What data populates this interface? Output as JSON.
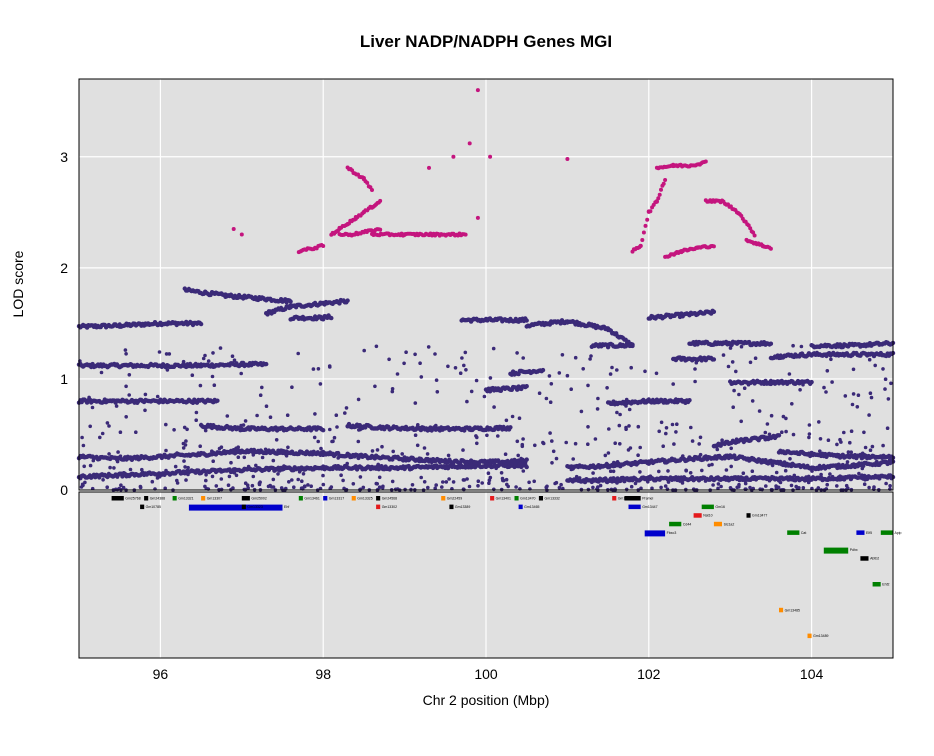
{
  "chart_data": {
    "type": "scatter",
    "title": "Liver NADP/NADPH Genes MGI",
    "xlabel": "Chr 2 position (Mbp)",
    "ylabel": "LOD score",
    "xlim": [
      95.0,
      105.0
    ],
    "ylim": [
      0,
      3.7
    ],
    "xticks": [
      96,
      98,
      100,
      102,
      104
    ],
    "yticks": [
      0,
      1,
      2,
      3
    ],
    "grid": true,
    "colors": {
      "panel_bg": "#e0e0e0",
      "grid": "#ffffff",
      "main_series": "#3b2a78",
      "significant_series": "#c4157e",
      "gene_colors": [
        "#000000",
        "#0000cc",
        "#008000",
        "#e41a1c",
        "#ff8c00"
      ]
    },
    "series": [
      {
        "role": "background-profiles",
        "segments": [
          {
            "x": [
              95.0,
              95.5,
              96.0,
              96.5
            ],
            "y": [
              1.47,
              1.48,
              1.5,
              1.5
            ]
          },
          {
            "x": [
              95.0,
              96.5,
              97.0,
              97.3
            ],
            "y": [
              1.12,
              1.12,
              1.13,
              1.13
            ]
          },
          {
            "x": [
              97.3,
              97.6,
              98.0,
              98.3
            ],
            "y": [
              1.59,
              1.65,
              1.68,
              1.7
            ]
          },
          {
            "x": [
              96.3,
              96.8,
              97.3,
              97.6
            ],
            "y": [
              1.8,
              1.75,
              1.72,
              1.7
            ]
          },
          {
            "x": [
              97.6,
              98.0,
              98.1
            ],
            "y": [
              1.55,
              1.55,
              1.56
            ]
          },
          {
            "x": [
              99.7,
              100.0,
              100.5
            ],
            "y": [
              1.53,
              1.53,
              1.53
            ]
          },
          {
            "x": [
              100.5,
              101.0,
              101.5,
              101.8
            ],
            "y": [
              1.48,
              1.52,
              1.45,
              1.3
            ]
          },
          {
            "x": [
              101.3,
              101.8
            ],
            "y": [
              1.3,
              1.3
            ]
          },
          {
            "x": [
              102.0,
              102.5,
              102.8
            ],
            "y": [
              1.55,
              1.58,
              1.6
            ]
          },
          {
            "x": [
              102.3,
              102.8
            ],
            "y": [
              1.18,
              1.18
            ]
          },
          {
            "x": [
              102.5,
              103.0,
              103.5
            ],
            "y": [
              1.32,
              1.32,
              1.32
            ]
          },
          {
            "x": [
              103.0,
              103.5,
              104.0
            ],
            "y": [
              0.97,
              0.97,
              0.97
            ]
          },
          {
            "x": [
              103.5,
              104.0,
              104.5,
              105.0
            ],
            "y": [
              1.2,
              1.22,
              1.22,
              1.22
            ]
          },
          {
            "x": [
              104.0,
              104.5,
              105.0
            ],
            "y": [
              1.3,
              1.3,
              1.32
            ]
          },
          {
            "x": [
              95.0,
              95.4,
              95.8,
              96.2,
              96.7
            ],
            "y": [
              0.8,
              0.8,
              0.8,
              0.8,
              0.8
            ]
          },
          {
            "x": [
              96.5,
              97.0,
              97.5,
              98.0
            ],
            "y": [
              0.58,
              0.55,
              0.55,
              0.55
            ]
          },
          {
            "x": [
              98.3,
              98.8,
              99.3,
              99.8,
              100.3
            ],
            "y": [
              0.58,
              0.56,
              0.55,
              0.55,
              0.56
            ]
          },
          {
            "x": [
              100.3,
              100.7
            ],
            "y": [
              1.05,
              1.08
            ]
          },
          {
            "x": [
              100.0,
              100.5
            ],
            "y": [
              0.9,
              0.92
            ]
          },
          {
            "x": [
              101.5,
              102.0,
              102.5
            ],
            "y": [
              0.78,
              0.8,
              0.8
            ]
          },
          {
            "x": [
              95.0,
              95.5,
              96.0,
              96.5,
              97.0,
              97.5,
              98.0,
              98.5,
              99.0,
              99.5,
              100.0,
              100.5
            ],
            "y": [
              0.3,
              0.28,
              0.3,
              0.32,
              0.35,
              0.34,
              0.33,
              0.3,
              0.28,
              0.26,
              0.25,
              0.26
            ]
          },
          {
            "x": [
              95.0,
              96.0,
              97.0,
              98.0,
              99.0,
              100.0,
              100.5
            ],
            "y": [
              0.12,
              0.15,
              0.18,
              0.2,
              0.2,
              0.22,
              0.22
            ]
          },
          {
            "x": [
              101.0,
              101.5,
              102.0,
              102.5,
              103.0,
              103.5,
              104.0,
              104.5,
              105.0
            ],
            "y": [
              0.2,
              0.22,
              0.25,
              0.28,
              0.3,
              0.25,
              0.2,
              0.22,
              0.25
            ]
          },
          {
            "x": [
              101.0,
              102.0,
              103.0,
              104.0,
              105.0
            ],
            "y": [
              0.08,
              0.1,
              0.1,
              0.1,
              0.12
            ]
          },
          {
            "x": [
              102.8,
              103.2,
              103.6
            ],
            "y": [
              0.4,
              0.45,
              0.48
            ]
          },
          {
            "x": [
              103.6,
              104.0,
              104.5,
              105.0
            ],
            "y": [
              0.35,
              0.32,
              0.3,
              0.3
            ]
          }
        ]
      },
      {
        "role": "significant",
        "segments": [
          {
            "x": [
              98.1,
              98.2,
              98.3,
              98.4,
              98.5,
              98.6,
              98.7
            ],
            "y": [
              2.3,
              2.35,
              2.4,
              2.45,
              2.5,
              2.55,
              2.6
            ]
          },
          {
            "x": [
              98.2,
              98.35,
              98.5,
              98.7
            ],
            "y": [
              2.3,
              2.3,
              2.32,
              2.35
            ]
          },
          {
            "x": [
              98.3,
              98.5,
              98.6
            ],
            "y": [
              2.9,
              2.8,
              2.7
            ]
          },
          {
            "x": [
              98.6,
              98.8,
              99.0,
              99.3,
              99.6,
              99.75
            ],
            "y": [
              2.3,
              2.3,
              2.3,
              2.3,
              2.3,
              2.3
            ]
          },
          {
            "x": [
              97.7,
              97.9,
              98.0
            ],
            "y": [
              2.15,
              2.18,
              2.2
            ]
          },
          {
            "x": [
              101.8,
              101.9,
              102.0,
              102.1,
              102.2
            ],
            "y": [
              2.15,
              2.2,
              2.5,
              2.6,
              2.8
            ]
          },
          {
            "x": [
              102.1,
              102.3,
              102.5,
              102.7
            ],
            "y": [
              2.9,
              2.92,
              2.92,
              2.95
            ]
          },
          {
            "x": [
              102.2,
              102.4,
              102.6,
              102.8
            ],
            "y": [
              2.1,
              2.15,
              2.18,
              2.2
            ]
          },
          {
            "x": [
              102.7,
              102.9,
              103.1,
              103.3
            ],
            "y": [
              2.6,
              2.6,
              2.5,
              2.3
            ]
          },
          {
            "x": [
              103.2,
              103.4,
              103.5
            ],
            "y": [
              2.25,
              2.2,
              2.18
            ]
          }
        ],
        "points": [
          [
            99.9,
            3.6
          ],
          [
            99.8,
            3.12
          ],
          [
            100.05,
            3.0
          ],
          [
            99.6,
            3.0
          ],
          [
            101.0,
            2.98
          ],
          [
            99.3,
            2.9
          ],
          [
            97.0,
            2.3
          ],
          [
            96.9,
            2.35
          ],
          [
            99.9,
            2.45
          ]
        ]
      }
    ],
    "genes": [
      {
        "x_start": 95.4,
        "x_end": 95.55,
        "row": 0,
        "color": "black",
        "label": "Gm25768"
      },
      {
        "x_start": 95.8,
        "x_end": 95.85,
        "row": 0,
        "color": "black",
        "label": "Gm24388"
      },
      {
        "x_start": 96.15,
        "x_end": 96.2,
        "row": 0,
        "color": "green",
        "label": "Gm13321"
      },
      {
        "x_start": 96.5,
        "x_end": 96.55,
        "row": 0,
        "color": "orange",
        "label": "Gm13307"
      },
      {
        "x_start": 97.0,
        "x_end": 97.1,
        "row": 0,
        "color": "black",
        "label": "Gm25002"
      },
      {
        "x_start": 97.7,
        "x_end": 97.75,
        "row": 0,
        "color": "green",
        "label": "Gm13461"
      },
      {
        "x_start": 98.0,
        "x_end": 98.05,
        "row": 0,
        "color": "blue",
        "label": "Gm13317"
      },
      {
        "x_start": 98.35,
        "x_end": 98.4,
        "row": 0,
        "color": "orange",
        "label": "Gm13325"
      },
      {
        "x_start": 98.65,
        "x_end": 98.7,
        "row": 0,
        "color": "black",
        "label": "Gm24568"
      },
      {
        "x_start": 99.45,
        "x_end": 99.5,
        "row": 0,
        "color": "orange",
        "label": "Gm22459"
      },
      {
        "x_start": 100.05,
        "x_end": 100.1,
        "row": 0,
        "color": "red",
        "label": "Gm13401"
      },
      {
        "x_start": 100.35,
        "x_end": 100.4,
        "row": 0,
        "color": "green",
        "label": "Gm13470"
      },
      {
        "x_start": 100.65,
        "x_end": 100.7,
        "row": 0,
        "color": "black",
        "label": "Gm13332"
      },
      {
        "x_start": 101.55,
        "x_end": 101.6,
        "row": 0,
        "color": "red",
        "label": "Gm13295"
      },
      {
        "x_start": 101.7,
        "x_end": 101.9,
        "row": 0,
        "color": "black",
        "label": "Pramel"
      },
      {
        "x_start": 96.35,
        "x_end": 97.5,
        "row": 1,
        "color": "blue",
        "label": "Ehf"
      },
      {
        "x_start": 95.75,
        "x_end": 95.8,
        "row": 1,
        "color": "black",
        "label": "Gm10785"
      },
      {
        "x_start": 97.0,
        "x_end": 97.05,
        "row": 1,
        "color": "black",
        "label": "Gm13323"
      },
      {
        "x_start": 98.65,
        "x_end": 98.7,
        "row": 1,
        "color": "red",
        "label": "Gm13302"
      },
      {
        "x_start": 99.55,
        "x_end": 99.6,
        "row": 1,
        "color": "black",
        "label": "Gm13389"
      },
      {
        "x_start": 100.4,
        "x_end": 100.45,
        "row": 1,
        "color": "blue",
        "label": "Gm13465"
      },
      {
        "x_start": 101.75,
        "x_end": 101.9,
        "row": 1,
        "color": "blue",
        "label": "Gm13447"
      },
      {
        "x_start": 102.65,
        "x_end": 102.8,
        "row": 1,
        "color": "green",
        "label": "Gm16"
      },
      {
        "x_start": 102.55,
        "x_end": 102.65,
        "row": 2,
        "color": "red",
        "label": "Nat10"
      },
      {
        "x_start": 103.2,
        "x_end": 103.25,
        "row": 2,
        "color": "black",
        "label": "Gm13477"
      },
      {
        "x_start": 101.95,
        "x_end": 102.2,
        "row": 4,
        "color": "blue",
        "label": "Fbxo3"
      },
      {
        "x_start": 102.25,
        "x_end": 102.4,
        "row": 3,
        "color": "green",
        "label": "Cd44"
      },
      {
        "x_start": 102.8,
        "x_end": 102.9,
        "row": 3,
        "color": "orange",
        "label": "Slc1a2"
      },
      {
        "x_start": 103.7,
        "x_end": 103.85,
        "row": 4,
        "color": "green",
        "label": "Cat"
      },
      {
        "x_start": 104.15,
        "x_end": 104.45,
        "row": 6,
        "color": "green",
        "label": "Pdhx"
      },
      {
        "x_start": 104.55,
        "x_end": 104.65,
        "row": 4,
        "color": "blue",
        "label": "Elf5"
      },
      {
        "x_start": 104.85,
        "x_end": 105.0,
        "row": 4,
        "color": "green",
        "label": "Apip"
      },
      {
        "x_start": 104.6,
        "x_end": 104.7,
        "row": 7,
        "color": "black",
        "label": "Abtb2"
      },
      {
        "x_start": 104.75,
        "x_end": 104.85,
        "row": 10,
        "color": "green",
        "label": "Ehf2"
      },
      {
        "x_start": 103.6,
        "x_end": 103.65,
        "row": 13,
        "color": "orange",
        "label": "Gm13485"
      },
      {
        "x_start": 103.95,
        "x_end": 104.0,
        "row": 16,
        "color": "orange",
        "label": "Gm13489"
      }
    ]
  }
}
